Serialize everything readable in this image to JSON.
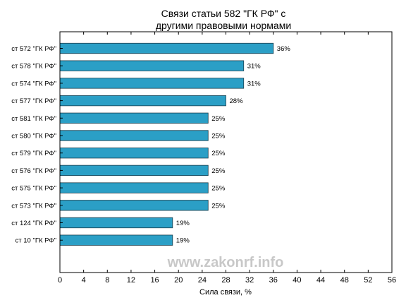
{
  "chart_data": {
    "type": "bar",
    "orientation": "horizontal",
    "title_lines": [
      "Связи статьи 582 \"ГК РФ\" с",
      "другими правовыми нормами"
    ],
    "xlabel": "Сила связи, %",
    "ylabel": "",
    "xlim": [
      0,
      56
    ],
    "xticks": [
      0,
      4,
      8,
      12,
      16,
      20,
      24,
      28,
      32,
      36,
      40,
      44,
      48,
      52,
      56
    ],
    "grid": false,
    "categories": [
      "ст 572 \"ГК РФ\"",
      "ст 578 \"ГК РФ\"",
      "ст 574 \"ГК РФ\"",
      "ст 577 \"ГК РФ\"",
      "ст 581 \"ГК РФ\"",
      "ст 580 \"ГК РФ\"",
      "ст 579 \"ГК РФ\"",
      "ст 576 \"ГК РФ\"",
      "ст 575 \"ГК РФ\"",
      "ст 573 \"ГК РФ\"",
      "ст 124 \"ГК РФ\"",
      "ст 10 \"ГК РФ\""
    ],
    "values": [
      36,
      31,
      31,
      28,
      25,
      25,
      25,
      25,
      25,
      25,
      19,
      19
    ],
    "value_labels": [
      "36%",
      "31%",
      "31%",
      "28%",
      "25%",
      "25%",
      "25%",
      "25%",
      "25%",
      "25%",
      "19%",
      "19%"
    ],
    "bar_color": "#2b9fc6"
  },
  "watermark": "www.zakonrf.info"
}
